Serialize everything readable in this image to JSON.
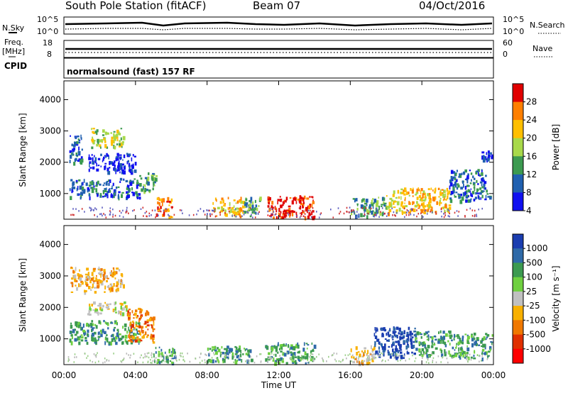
{
  "header": {
    "station": "South Pole Station (fitACF)",
    "beam": "Beam 07",
    "date": "04/Oct/2016"
  },
  "top_panel": {
    "left_label": "N.Sky",
    "right_label": "N.Search",
    "left_ticks": [
      "10^5",
      "10^0"
    ],
    "right_ticks": [
      "10^5",
      "10^0"
    ]
  },
  "freq_panel": {
    "left_label_1": "Freq.",
    "left_label_2": "[MHz]",
    "right_label": "Nave",
    "left_ticks": [
      "18",
      "8"
    ],
    "right_ticks": [
      "60",
      "0"
    ]
  },
  "cpid": {
    "label": "CPID",
    "value": "normalsound (fast) 157 RF"
  },
  "chart_data": [
    {
      "type": "heatmap",
      "name": "power",
      "ylabel": "Slant Range [km]",
      "yticks": [
        "4000",
        "3000",
        "2000",
        "1000"
      ],
      "xlabel": "Time UT",
      "xticks": [
        "00:00",
        "04:00",
        "08:00",
        "12:00",
        "16:00",
        "20:00",
        "00:00"
      ],
      "colorbar_label": "Power [dB]",
      "colorbar_ticks": [
        "28",
        "24",
        "20",
        "16",
        "12",
        "8",
        "4"
      ],
      "colorbar_colors": [
        "#e00000",
        "#ff7f00",
        "#ffbf00",
        "#a8d94a",
        "#3c9a50",
        "#2060b0",
        "#1010f0"
      ],
      "regions": [
        {
          "t0": 0.3,
          "t1": 1.0,
          "r0": 2000,
          "r1": 3000,
          "level": 1
        },
        {
          "t0": 1.5,
          "t1": 3.3,
          "r0": 2500,
          "r1": 3100,
          "level": 3
        },
        {
          "t0": 1.3,
          "t1": 4.0,
          "r0": 1700,
          "r1": 2300,
          "level": 0
        },
        {
          "t0": 0.3,
          "t1": 4.2,
          "r0": 900,
          "r1": 1500,
          "level": 1
        },
        {
          "t0": 4.2,
          "t1": 5.2,
          "r0": 1100,
          "r1": 1700,
          "level": 2
        },
        {
          "t0": 5.1,
          "t1": 6.0,
          "r0": 250,
          "r1": 900,
          "level": 5
        },
        {
          "t0": 8.3,
          "t1": 10.0,
          "r0": 300,
          "r1": 900,
          "level": 4
        },
        {
          "t0": 10.0,
          "t1": 11.0,
          "r0": 300,
          "r1": 900,
          "level": 2
        },
        {
          "t0": 11.3,
          "t1": 14.0,
          "r0": 250,
          "r1": 950,
          "level": 6
        },
        {
          "t0": 16.0,
          "t1": 18.0,
          "r0": 300,
          "r1": 900,
          "level": 2
        },
        {
          "t0": 18.0,
          "t1": 21.5,
          "r0": 400,
          "r1": 1200,
          "level": 4
        },
        {
          "t0": 21.5,
          "t1": 23.8,
          "r0": 800,
          "r1": 1800,
          "level": 1
        },
        {
          "t0": 23.3,
          "t1": 23.9,
          "r0": 2100,
          "r1": 2400,
          "level": 0
        }
      ]
    },
    {
      "type": "heatmap",
      "name": "velocity",
      "ylabel": "Slant Range [km]",
      "yticks": [
        "4000",
        "3000",
        "2000",
        "1000"
      ],
      "xlabel": "Time UT",
      "xticks": [
        "00:00",
        "04:00",
        "08:00",
        "12:00",
        "16:00",
        "20:00",
        "00:00"
      ],
      "colorbar_label": "Velocity [m s⁻¹]",
      "colorbar_ticks": [
        "1000",
        "500",
        "100",
        "25",
        "-25",
        "-100",
        "-500",
        "-1000"
      ],
      "colorbar_colors": [
        "#1a3db0",
        "#2f6aa8",
        "#3c9a50",
        "#6fd040",
        "#c0c0c0",
        "#f8b000",
        "#f07800",
        "#e03000",
        "#ff0000"
      ],
      "regions": [
        {
          "t0": 0.3,
          "t1": 3.3,
          "r0": 2500,
          "r1": 3300,
          "level": 5
        },
        {
          "t0": 1.3,
          "t1": 3.5,
          "r0": 1800,
          "r1": 2200,
          "level": 4
        },
        {
          "t0": 0.3,
          "t1": 4.2,
          "r0": 900,
          "r1": 1600,
          "level": 2
        },
        {
          "t0": 3.5,
          "t1": 5.0,
          "r0": 900,
          "r1": 2000,
          "level": 6
        },
        {
          "t0": 5.0,
          "t1": 6.2,
          "r0": 250,
          "r1": 800,
          "level": 2
        },
        {
          "t0": 8.0,
          "t1": 10.5,
          "r0": 300,
          "r1": 800,
          "level": 2
        },
        {
          "t0": 11.2,
          "t1": 14.0,
          "r0": 250,
          "r1": 900,
          "level": 2
        },
        {
          "t0": 16.0,
          "t1": 17.3,
          "r0": 250,
          "r1": 800,
          "level": 5
        },
        {
          "t0": 17.3,
          "t1": 19.6,
          "r0": 400,
          "r1": 1400,
          "level": 0
        },
        {
          "t0": 19.6,
          "t1": 21.5,
          "r0": 500,
          "r1": 1300,
          "level": 2
        },
        {
          "t0": 21.5,
          "t1": 23.9,
          "r0": 400,
          "r1": 1200,
          "level": 2
        }
      ]
    }
  ]
}
